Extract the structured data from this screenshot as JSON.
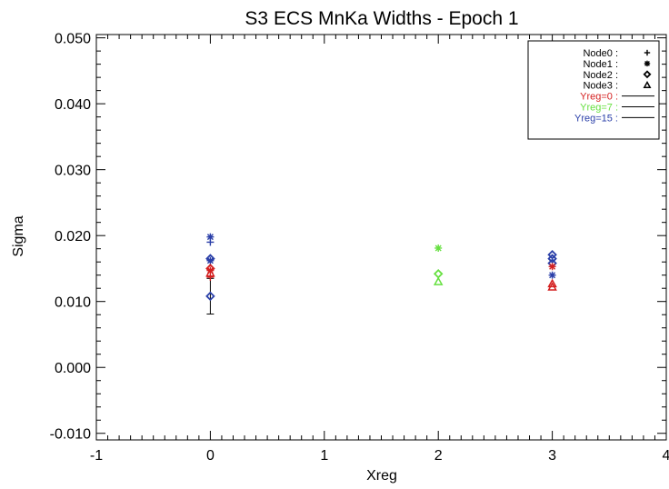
{
  "chart_data": {
    "type": "scatter",
    "title": "S3 ECS MnKa Widths - Epoch 1",
    "xlabel": "Xreg",
    "ylabel": "Sigma",
    "xlim": [
      -1,
      4
    ],
    "ylim": [
      -0.011,
      0.0505
    ],
    "x_ticks": [
      -1,
      0,
      1,
      2,
      3,
      4
    ],
    "x_tick_labels": [
      "-1",
      "0",
      "1",
      "2",
      "3",
      "4"
    ],
    "y_ticks": [
      -0.01,
      0.0,
      0.01,
      0.02,
      0.03,
      0.04,
      0.05
    ],
    "y_tick_labels": [
      "-0.010",
      "0.000",
      "0.010",
      "0.020",
      "0.030",
      "0.040",
      "0.050"
    ],
    "grid": false,
    "legend_position": "top-right",
    "legend_nodes": [
      {
        "label": "Node0 :",
        "symbol": "plus"
      },
      {
        "label": "Node1 :",
        "symbol": "asterisk"
      },
      {
        "label": "Node2 :",
        "symbol": "diamond"
      },
      {
        "label": "Node3 :",
        "symbol": "triangle"
      }
    ],
    "legend_yregs": [
      {
        "label": "Yreg=0 :",
        "color": "#d42020"
      },
      {
        "label": "Yreg=7 :",
        "color": "#66e040"
      },
      {
        "label": "Yreg=15 :",
        "color": "#2a3fa8"
      }
    ],
    "points": [
      {
        "x": 0,
        "y": 0.019,
        "node": "Node0",
        "yreg": "Yreg=15"
      },
      {
        "x": 0,
        "y": 0.0198,
        "node": "Node1",
        "yreg": "Yreg=15"
      },
      {
        "x": 0,
        "y": 0.0108,
        "node": "Node2",
        "yreg": "Yreg=15",
        "yerr": 0.0027
      },
      {
        "x": 0,
        "y": 0.0165,
        "node": "Node2",
        "yreg": "Yreg=15"
      },
      {
        "x": 0,
        "y": 0.0162,
        "node": "Node1",
        "yreg": "Yreg=15"
      },
      {
        "x": 0,
        "y": 0.015,
        "node": "Node2",
        "yreg": "Yreg=0"
      },
      {
        "x": 0,
        "y": 0.0147,
        "node": "Node1",
        "yreg": "Yreg=0"
      },
      {
        "x": 0,
        "y": 0.0143,
        "node": "Node3",
        "yreg": "Yreg=0"
      },
      {
        "x": 0,
        "y": 0.0137,
        "node": "Node0",
        "yreg": "Yreg=0"
      },
      {
        "x": 2,
        "y": 0.0181,
        "node": "Node1",
        "yreg": "Yreg=7"
      },
      {
        "x": 2,
        "y": 0.0142,
        "node": "Node2",
        "yreg": "Yreg=7"
      },
      {
        "x": 2,
        "y": 0.013,
        "node": "Node3",
        "yreg": "Yreg=7"
      },
      {
        "x": 3,
        "y": 0.0171,
        "node": "Node2",
        "yreg": "Yreg=15"
      },
      {
        "x": 3,
        "y": 0.0165,
        "node": "Node2",
        "yreg": "Yreg=15"
      },
      {
        "x": 3,
        "y": 0.0158,
        "node": "Node2",
        "yreg": "Yreg=15"
      },
      {
        "x": 3,
        "y": 0.0153,
        "node": "Node1",
        "yreg": "Yreg=0"
      },
      {
        "x": 3,
        "y": 0.014,
        "node": "Node1",
        "yreg": "Yreg=15"
      },
      {
        "x": 3,
        "y": 0.0127,
        "node": "Node3",
        "yreg": "Yreg=0"
      },
      {
        "x": 3,
        "y": 0.0122,
        "node": "Node3",
        "yreg": "Yreg=0"
      }
    ]
  }
}
